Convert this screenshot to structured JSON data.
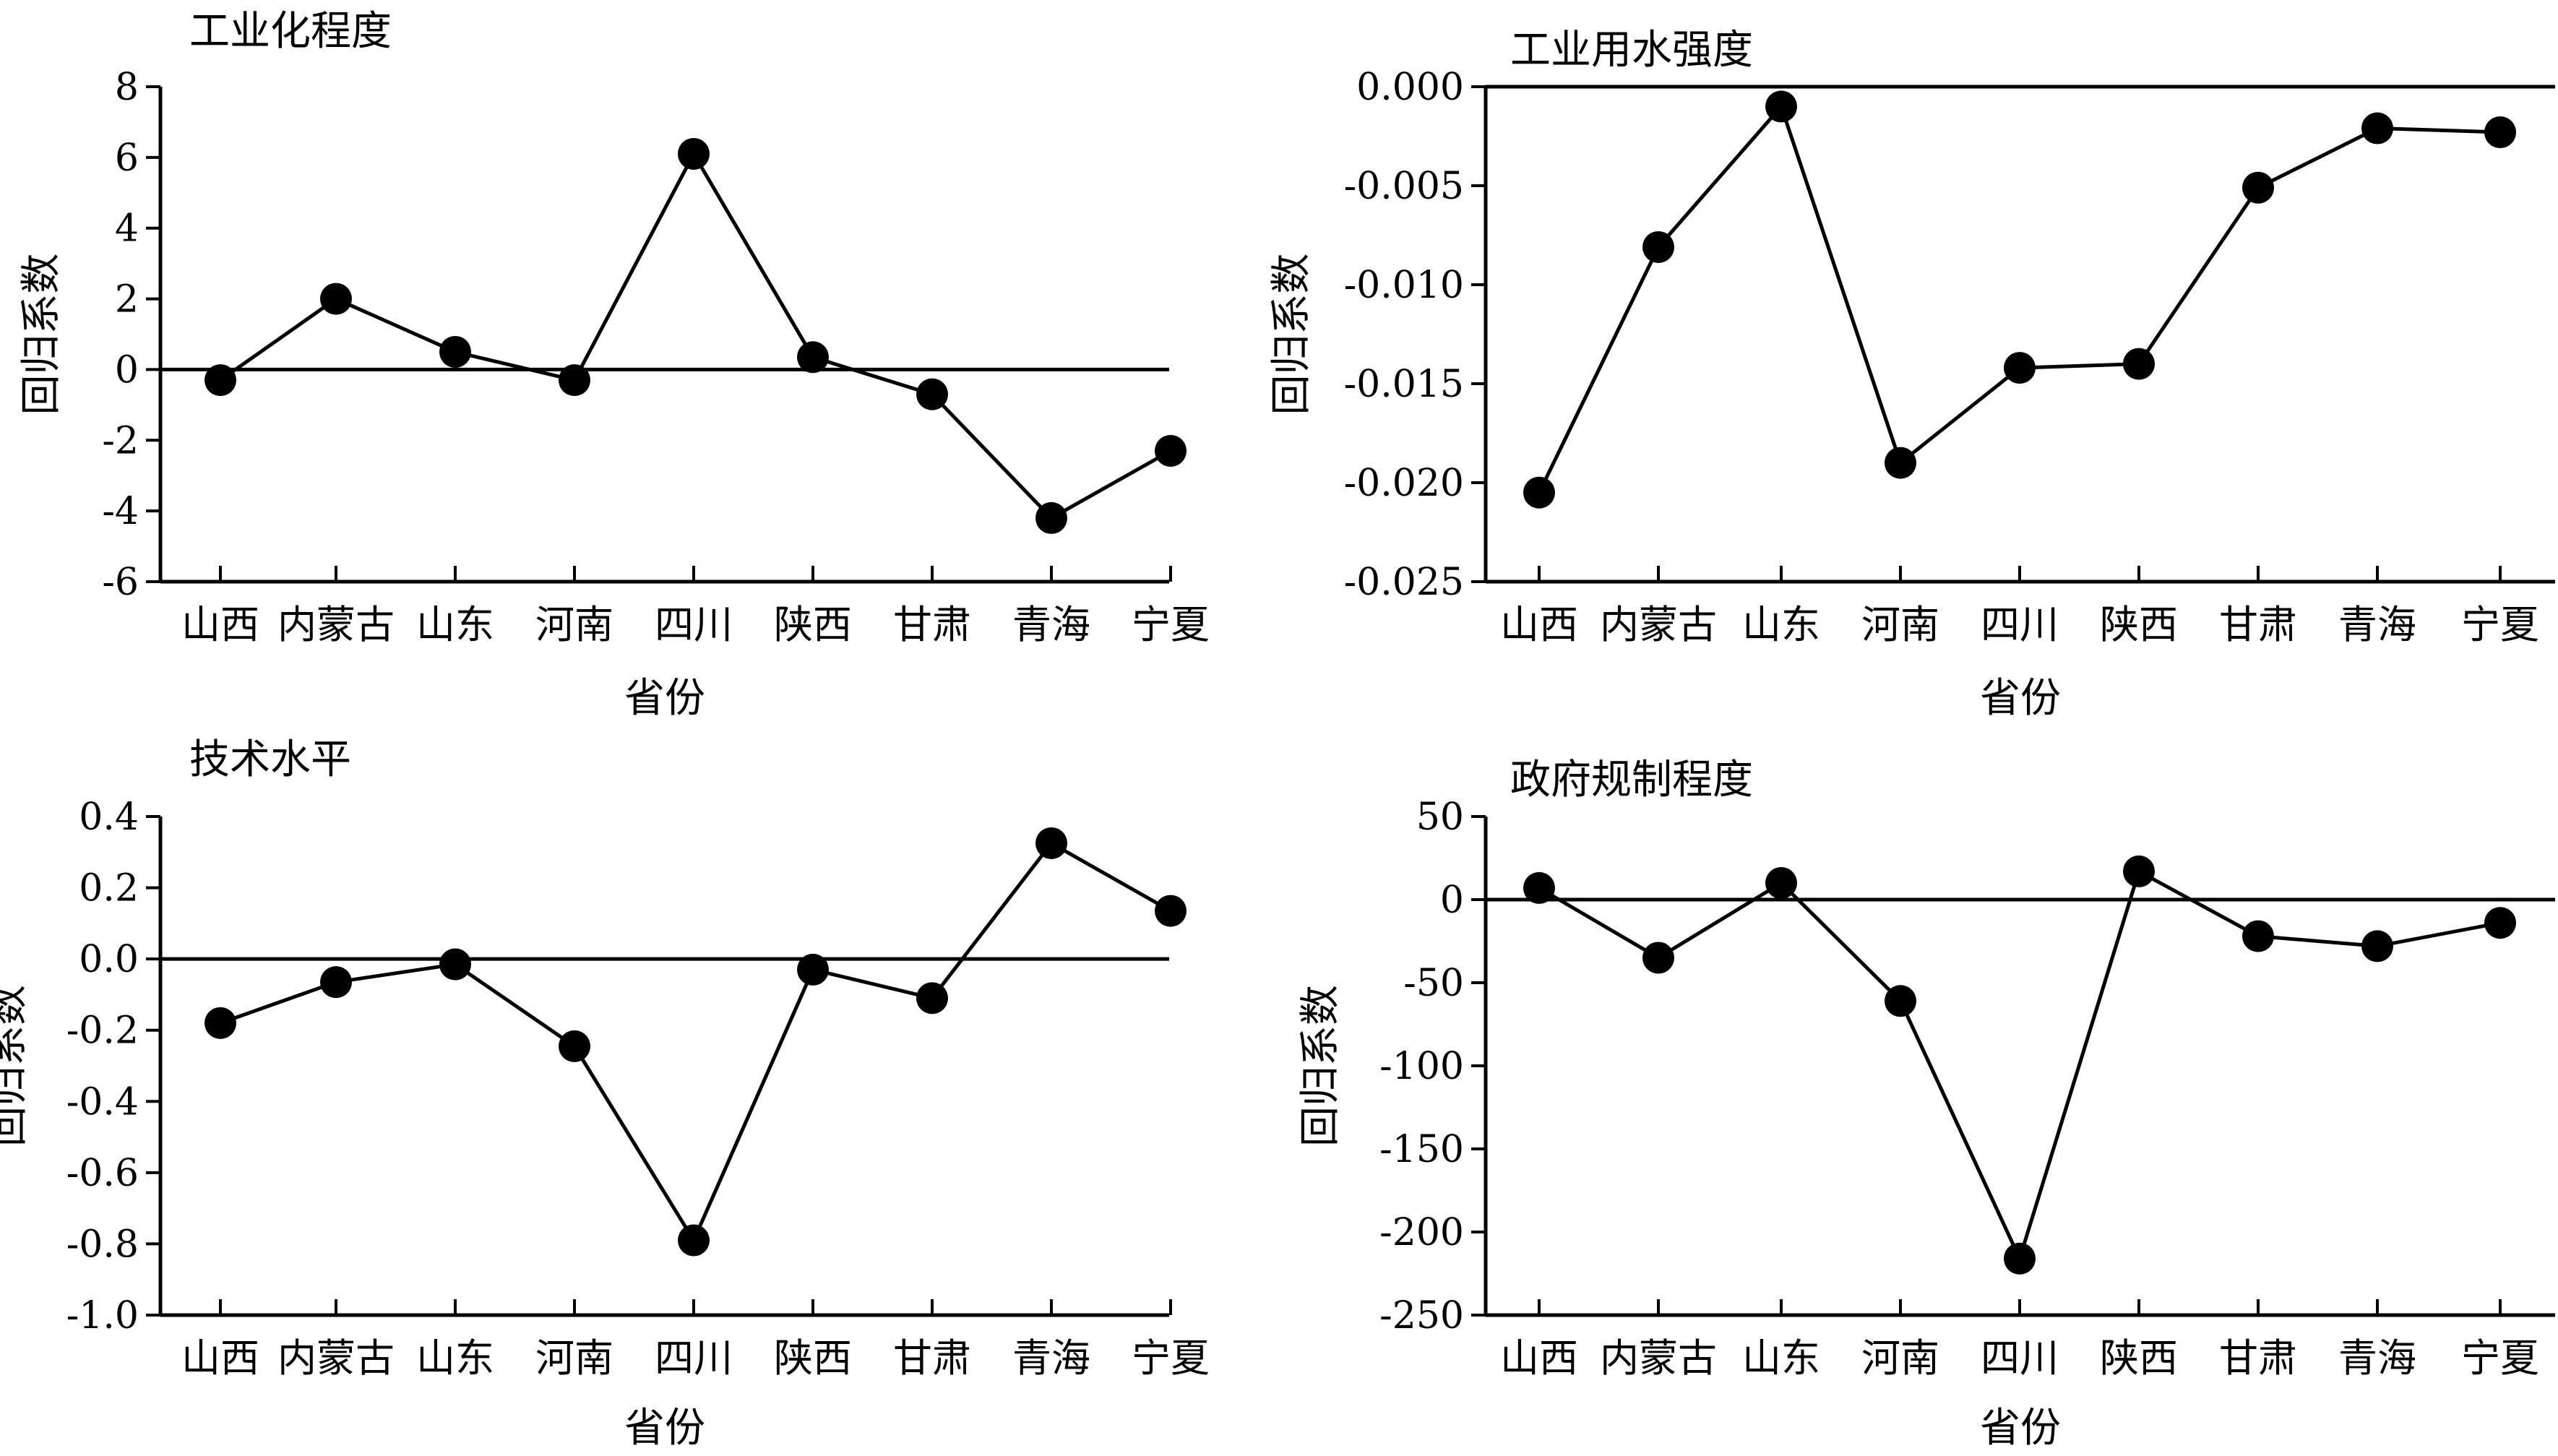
{
  "colors": {
    "foreground": "#000000",
    "background": "#ffffff"
  },
  "chart_data": [
    {
      "type": "line",
      "title": "工业化程度",
      "xlabel": "省份",
      "ylabel": "回归系数",
      "categories": [
        "山西",
        "内蒙古",
        "山东",
        "河南",
        "四川",
        "陕西",
        "甘肃",
        "青海",
        "宁夏"
      ],
      "values": [
        -0.3,
        2.0,
        0.5,
        -0.3,
        6.1,
        0.35,
        -0.7,
        -4.2,
        -2.3
      ],
      "ylim": [
        -6,
        8
      ],
      "yticks": [
        "8",
        "6",
        "4",
        "2",
        "0",
        "-2",
        "-4",
        "-6"
      ],
      "ytick_values": [
        8,
        6,
        4,
        2,
        0,
        -2,
        -4,
        -6
      ],
      "reference_line": 0,
      "grid": false,
      "legend": "none"
    },
    {
      "type": "line",
      "title": "工业用水强度",
      "xlabel": "省份",
      "ylabel": "回归系数",
      "categories": [
        "山西",
        "内蒙古",
        "山东",
        "河南",
        "四川",
        "陕西",
        "甘肃",
        "青海",
        "宁夏"
      ],
      "values": [
        -0.0205,
        -0.0081,
        -0.001,
        -0.019,
        -0.0142,
        -0.014,
        -0.0051,
        -0.0021,
        -0.0023
      ],
      "ylim": [
        -0.025,
        0
      ],
      "yticks": [
        "0.000",
        "-0.005",
        "-0.010",
        "-0.015",
        "-0.020",
        "-0.025"
      ],
      "ytick_values": [
        0,
        -0.005,
        -0.01,
        -0.015,
        -0.02,
        -0.025
      ],
      "reference_line": 0,
      "grid": false,
      "legend": "none"
    },
    {
      "type": "line",
      "title": "技术水平",
      "xlabel": "省份",
      "ylabel": "回归系数",
      "categories": [
        "山西",
        "内蒙古",
        "山东",
        "河南",
        "四川",
        "陕西",
        "甘肃",
        "青海",
        "宁夏"
      ],
      "values": [
        -0.18,
        -0.065,
        -0.015,
        -0.245,
        -0.79,
        -0.03,
        -0.11,
        0.325,
        0.135
      ],
      "ylim": [
        -1.0,
        0.4
      ],
      "yticks": [
        "0.4",
        "0.2",
        "0.0",
        "-0.2",
        "-0.4",
        "-0.6",
        "-0.8",
        "-1.0"
      ],
      "ytick_values": [
        0.4,
        0.2,
        0,
        -0.2,
        -0.4,
        -0.6,
        -0.8,
        -1.0
      ],
      "reference_line": 0,
      "grid": false,
      "legend": "none"
    },
    {
      "type": "line",
      "title": "政府规制程度",
      "xlabel": "省份",
      "ylabel": "回归系数",
      "categories": [
        "山西",
        "内蒙古",
        "山东",
        "河南",
        "四川",
        "陕西",
        "甘肃",
        "青海",
        "宁夏"
      ],
      "values": [
        7,
        -35,
        10,
        -61,
        -216,
        17,
        -22,
        -28,
        -14
      ],
      "ylim": [
        -250,
        50
      ],
      "yticks": [
        "50",
        "0",
        "-50",
        "-100",
        "-150",
        "-200",
        "-250"
      ],
      "ytick_values": [
        50,
        0,
        -50,
        -100,
        -150,
        -200,
        -250
      ],
      "reference_line": 0,
      "grid": false,
      "legend": "none"
    }
  ]
}
